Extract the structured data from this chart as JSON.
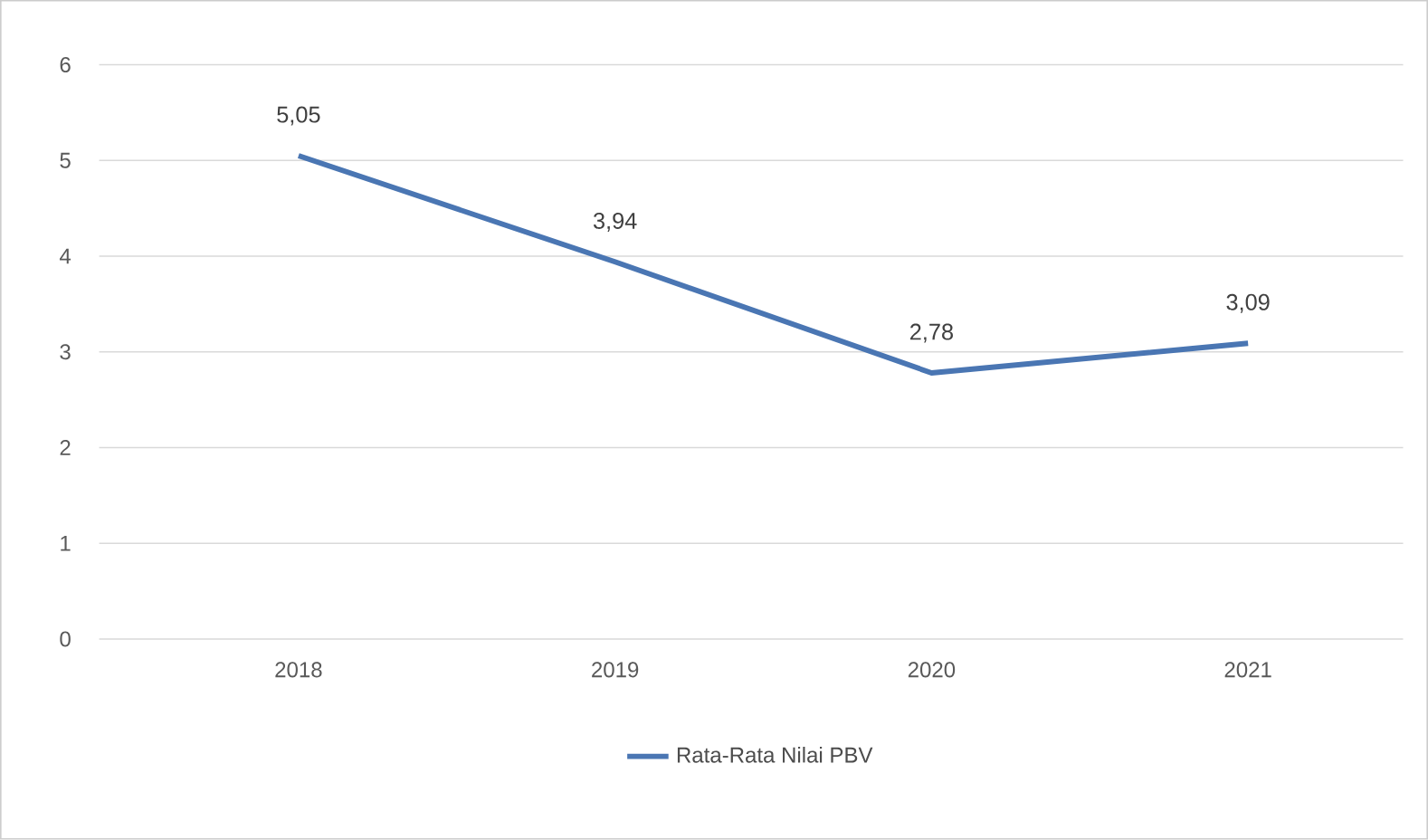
{
  "chart_data": {
    "type": "line",
    "categories": [
      "2018",
      "2019",
      "2020",
      "2021"
    ],
    "series": [
      {
        "name": "Rata-Rata Nilai PBV",
        "color": "#4a76b3",
        "values": [
          5.05,
          3.94,
          2.78,
          3.09
        ],
        "value_labels": [
          "5,05",
          "3,94",
          "2,78",
          "3,09"
        ]
      }
    ],
    "ylim": [
      0,
      6
    ],
    "yticks": [
      0,
      1,
      2,
      3,
      4,
      5,
      6
    ],
    "grid": "y",
    "legend": "bottom",
    "marker": "none",
    "line_style": "solid"
  }
}
